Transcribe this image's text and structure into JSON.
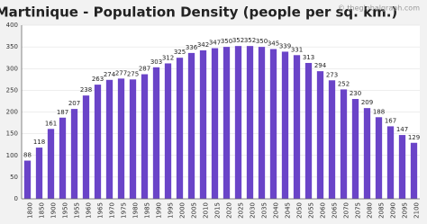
{
  "chart_data": {
    "type": "bar",
    "title": "Martinique - Population Density (people per sq. km.)",
    "watermark": "© theglobalgraph.com",
    "categories": [
      "1800",
      "1850",
      "1900",
      "1950",
      "1955",
      "1960",
      "1965",
      "1970",
      "1975",
      "1980",
      "1985",
      "1990",
      "1995",
      "2000",
      "2005",
      "2010",
      "2015",
      "2020",
      "2025",
      "2030",
      "2035",
      "2040",
      "2045",
      "2050",
      "2055",
      "2060",
      "2065",
      "2070",
      "2075",
      "2080",
      "2085",
      "2090",
      "2095",
      "2100"
    ],
    "values": [
      88,
      118,
      161,
      187,
      207,
      238,
      263,
      274,
      277,
      275,
      287,
      303,
      312,
      325,
      336,
      342,
      347,
      350,
      352,
      352,
      350,
      345,
      339,
      331,
      313,
      294,
      273,
      252,
      230,
      209,
      188,
      167,
      147,
      129
    ],
    "color": "#6a44c8",
    "ylim": [
      0,
      400
    ],
    "yticks": [
      0,
      50,
      100,
      150,
      200,
      250,
      300,
      350,
      400
    ],
    "grid": true
  }
}
